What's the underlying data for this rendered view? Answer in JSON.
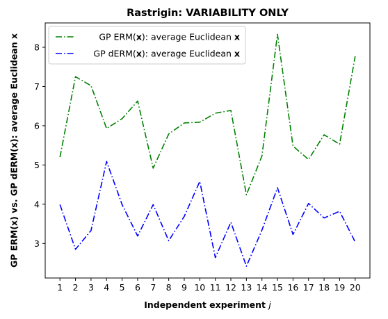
{
  "chart_data": {
    "type": "line",
    "title": "Rastrigin: VARIABILITY ONLY",
    "xlabel_main": "Independent experiment ",
    "xlabel_var": "j",
    "ylabel": "GP ERM(x) vs. GP dERM(x): average Euclidean x",
    "x": [
      1,
      2,
      3,
      4,
      5,
      6,
      7,
      8,
      9,
      10,
      11,
      12,
      13,
      14,
      15,
      16,
      17,
      18,
      19,
      20
    ],
    "xlim": [
      0.05,
      20.95
    ],
    "ylim": [
      2.12,
      8.62
    ],
    "yticks": [
      3,
      4,
      5,
      6,
      7,
      8
    ],
    "legend_position": "upper-left",
    "series": [
      {
        "name": "GP ERM(x): average Euclidean x",
        "legend_pre": "GP ERM(",
        "legend_bold": "x",
        "legend_post": "): average Euclidean ",
        "legend_end": "x",
        "color": "#008000",
        "style": "dashdot",
        "values": [
          5.2,
          7.25,
          7.02,
          5.93,
          6.18,
          6.63,
          4.92,
          5.79,
          6.07,
          6.09,
          6.32,
          6.39,
          4.24,
          5.23,
          8.33,
          5.48,
          5.14,
          5.77,
          5.53,
          7.77
        ]
      },
      {
        "name": "GP dERM(x): average Euclidean x",
        "legend_pre": "GP dERM(",
        "legend_bold": "x",
        "legend_post": "): average Euclidean ",
        "legend_end": "x",
        "color": "#0000ff",
        "style": "dashdot",
        "values": [
          3.99,
          2.85,
          3.33,
          5.09,
          3.99,
          3.19,
          3.99,
          3.07,
          3.69,
          4.58,
          2.64,
          3.54,
          2.42,
          3.34,
          4.42,
          3.23,
          4.02,
          3.65,
          3.82,
          3.04
        ]
      }
    ]
  }
}
